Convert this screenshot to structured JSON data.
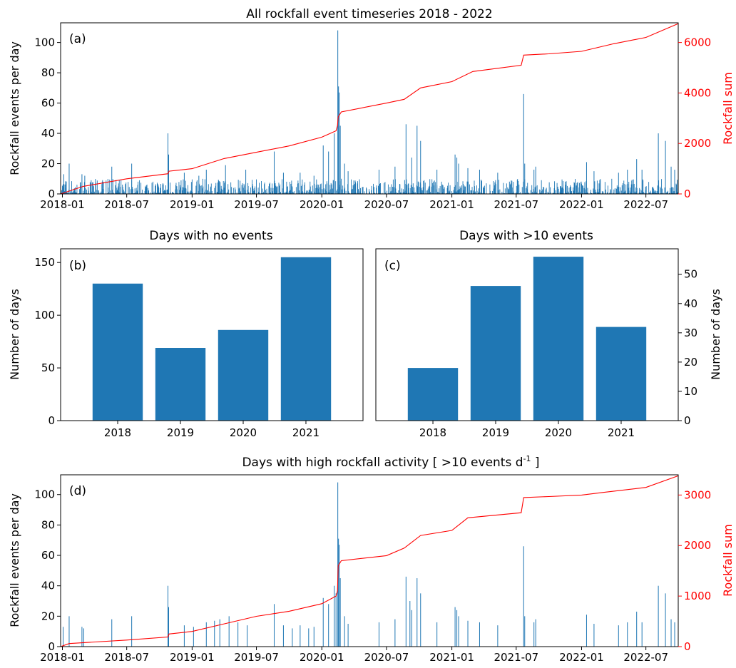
{
  "chart_data": [
    {
      "type": "bar",
      "title": "All rockfall event timeseries 2018 - 2022",
      "panel_label": "(a)",
      "ylabel": "Rockfall events per day",
      "ylabel_right": "Rockfall sum",
      "x_ticks": [
        "2018-01",
        "2018-07",
        "2019-01",
        "2019-07",
        "2020-01",
        "2020-07",
        "2021-01",
        "2021-07",
        "2022-01",
        "2022-07"
      ],
      "y_ticks": [
        "0",
        "20",
        "40",
        "60",
        "80",
        "100"
      ],
      "y_ticks_right": [
        "0",
        "2000",
        "4000",
        "6000"
      ],
      "ylim": [
        0,
        113
      ],
      "ylim_right": [
        0,
        6780
      ],
      "xlim": [
        "2017-12-27",
        "2022-09-30"
      ],
      "bar_color": "#1f77b4",
      "line_color": "#ff0000",
      "series": [
        {
          "kind": "bar",
          "name": "Rockfall events per day",
          "spikes": [
            {
              "x": "2018-01-05",
              "y": 13
            },
            {
              "x": "2018-01-20",
              "y": 20
            },
            {
              "x": "2018-02-25",
              "y": 13
            },
            {
              "x": "2018-03-05",
              "y": 12
            },
            {
              "x": "2018-05-20",
              "y": 18
            },
            {
              "x": "2018-07-15",
              "y": 20
            },
            {
              "x": "2018-10-25",
              "y": 40
            },
            {
              "x": "2018-10-27",
              "y": 26
            },
            {
              "x": "2018-12-10",
              "y": 14
            },
            {
              "x": "2019-01-20",
              "y": 12
            },
            {
              "x": "2019-02-10",
              "y": 16
            },
            {
              "x": "2019-04-05",
              "y": 19
            },
            {
              "x": "2019-06-01",
              "y": 16
            },
            {
              "x": "2019-08-20",
              "y": 28
            },
            {
              "x": "2019-09-15",
              "y": 14
            },
            {
              "x": "2019-11-01",
              "y": 14
            },
            {
              "x": "2019-12-10",
              "y": 12
            },
            {
              "x": "2020-01-05",
              "y": 32
            },
            {
              "x": "2020-01-20",
              "y": 28
            },
            {
              "x": "2020-02-05",
              "y": 40
            },
            {
              "x": "2020-02-15",
              "y": 108
            },
            {
              "x": "2020-02-17",
              "y": 71
            },
            {
              "x": "2020-02-19",
              "y": 67
            },
            {
              "x": "2020-02-22",
              "y": 45
            },
            {
              "x": "2020-03-05",
              "y": 20
            },
            {
              "x": "2020-03-15",
              "y": 15
            },
            {
              "x": "2020-06-10",
              "y": 16
            },
            {
              "x": "2020-07-25",
              "y": 18
            },
            {
              "x": "2020-08-25",
              "y": 46
            },
            {
              "x": "2020-09-10",
              "y": 24
            },
            {
              "x": "2020-09-25",
              "y": 45
            },
            {
              "x": "2020-10-05",
              "y": 35
            },
            {
              "x": "2020-11-20",
              "y": 16
            },
            {
              "x": "2021-01-10",
              "y": 26
            },
            {
              "x": "2021-01-15",
              "y": 24
            },
            {
              "x": "2021-01-20",
              "y": 20
            },
            {
              "x": "2021-02-15",
              "y": 17
            },
            {
              "x": "2021-03-20",
              "y": 16
            },
            {
              "x": "2021-05-10",
              "y": 14
            },
            {
              "x": "2021-07-22",
              "y": 66
            },
            {
              "x": "2021-07-25",
              "y": 20
            },
            {
              "x": "2021-08-20",
              "y": 16
            },
            {
              "x": "2021-08-25",
              "y": 18
            },
            {
              "x": "2022-01-15",
              "y": 21
            },
            {
              "x": "2022-02-05",
              "y": 15
            },
            {
              "x": "2022-04-15",
              "y": 14
            },
            {
              "x": "2022-05-10",
              "y": 16
            },
            {
              "x": "2022-06-05",
              "y": 23
            },
            {
              "x": "2022-06-20",
              "y": 16
            },
            {
              "x": "2022-08-05",
              "y": 40
            },
            {
              "x": "2022-08-25",
              "y": 35
            },
            {
              "x": "2022-09-10",
              "y": 18
            },
            {
              "x": "2022-09-20",
              "y": 16
            }
          ]
        },
        {
          "kind": "line",
          "name": "Rockfall sum",
          "axis": "right",
          "points": [
            {
              "x": "2017-12-27",
              "y": 0
            },
            {
              "x": "2018-03-01",
              "y": 300
            },
            {
              "x": "2018-07-01",
              "y": 600
            },
            {
              "x": "2018-10-25",
              "y": 800
            },
            {
              "x": "2018-10-28",
              "y": 900
            },
            {
              "x": "2019-01-01",
              "y": 1000
            },
            {
              "x": "2019-04-01",
              "y": 1400
            },
            {
              "x": "2019-07-01",
              "y": 1650
            },
            {
              "x": "2019-10-01",
              "y": 1900
            },
            {
              "x": "2020-01-01",
              "y": 2250
            },
            {
              "x": "2020-02-10",
              "y": 2500
            },
            {
              "x": "2020-02-14",
              "y": 2700
            },
            {
              "x": "2020-02-16",
              "y": 3050
            },
            {
              "x": "2020-02-25",
              "y": 3250
            },
            {
              "x": "2020-07-01",
              "y": 3600
            },
            {
              "x": "2020-08-20",
              "y": 3750
            },
            {
              "x": "2020-10-05",
              "y": 4200
            },
            {
              "x": "2021-01-01",
              "y": 4450
            },
            {
              "x": "2021-03-01",
              "y": 4850
            },
            {
              "x": "2021-07-15",
              "y": 5100
            },
            {
              "x": "2021-07-22",
              "y": 5500
            },
            {
              "x": "2021-10-01",
              "y": 5550
            },
            {
              "x": "2022-01-01",
              "y": 5650
            },
            {
              "x": "2022-04-01",
              "y": 5950
            },
            {
              "x": "2022-07-01",
              "y": 6200
            },
            {
              "x": "2022-09-30",
              "y": 6750
            }
          ]
        }
      ]
    },
    {
      "type": "bar",
      "title": "Days with no events",
      "panel_label": "(b)",
      "ylabel": "Number of days",
      "categories": [
        "2018",
        "2019",
        "2020",
        "2021"
      ],
      "values": [
        130,
        69,
        86,
        155
      ],
      "ylim": [
        0,
        163
      ],
      "y_ticks": [
        "0",
        "50",
        "100",
        "150"
      ],
      "bar_color": "#1f77b4"
    },
    {
      "type": "bar",
      "title": "Days with >10 events",
      "panel_label": "(c)",
      "ylabel": "Number of days",
      "ylabel_side": "right",
      "categories": [
        "2018",
        "2019",
        "2020",
        "2021"
      ],
      "values": [
        18,
        46,
        56,
        32
      ],
      "ylim": [
        0,
        58.7
      ],
      "y_ticks": [
        "0",
        "10",
        "20",
        "30",
        "40",
        "50"
      ],
      "bar_color": "#1f77b4"
    },
    {
      "type": "bar",
      "title": "Days with high rockfall activity [ >10 events d",
      "title_superscript": "-1",
      "title_suffix": " ]",
      "panel_label": "(d)",
      "ylabel": "Rockfall events per day",
      "ylabel_right": "Rockfall sum",
      "x_ticks": [
        "2018-01",
        "2018-07",
        "2019-01",
        "2019-07",
        "2020-01",
        "2020-07",
        "2021-01",
        "2021-07",
        "2022-01",
        "2022-07"
      ],
      "y_ticks": [
        "0",
        "20",
        "40",
        "60",
        "80",
        "100"
      ],
      "y_ticks_right": [
        "0",
        "1000",
        "2000",
        "3000"
      ],
      "ylim": [
        0,
        113
      ],
      "ylim_right": [
        0,
        3400
      ],
      "xlim": [
        "2017-12-27",
        "2022-09-30"
      ],
      "bar_color": "#1f77b4",
      "line_color": "#ff0000",
      "series": [
        {
          "kind": "bar",
          "name": "Rockfall events per day",
          "spikes": [
            {
              "x": "2018-01-03",
              "y": 13
            },
            {
              "x": "2018-01-20",
              "y": 20
            },
            {
              "x": "2018-02-25",
              "y": 13
            },
            {
              "x": "2018-03-02",
              "y": 12
            },
            {
              "x": "2018-05-20",
              "y": 18
            },
            {
              "x": "2018-07-15",
              "y": 20
            },
            {
              "x": "2018-10-25",
              "y": 40
            },
            {
              "x": "2018-10-27",
              "y": 26
            },
            {
              "x": "2018-12-10",
              "y": 14
            },
            {
              "x": "2019-01-05",
              "y": 13
            },
            {
              "x": "2019-02-10",
              "y": 16
            },
            {
              "x": "2019-03-05",
              "y": 17
            },
            {
              "x": "2019-03-20",
              "y": 18
            },
            {
              "x": "2019-04-15",
              "y": 20
            },
            {
              "x": "2019-05-10",
              "y": 16
            },
            {
              "x": "2019-06-05",
              "y": 14
            },
            {
              "x": "2019-08-20",
              "y": 28
            },
            {
              "x": "2019-09-15",
              "y": 14
            },
            {
              "x": "2019-10-10",
              "y": 12
            },
            {
              "x": "2019-11-01",
              "y": 14
            },
            {
              "x": "2019-11-25",
              "y": 12
            },
            {
              "x": "2019-12-10",
              "y": 13
            },
            {
              "x": "2020-01-05",
              "y": 32
            },
            {
              "x": "2020-01-20",
              "y": 28
            },
            {
              "x": "2020-02-05",
              "y": 40
            },
            {
              "x": "2020-02-10",
              "y": 35
            },
            {
              "x": "2020-02-15",
              "y": 108
            },
            {
              "x": "2020-02-17",
              "y": 71
            },
            {
              "x": "2020-02-19",
              "y": 67
            },
            {
              "x": "2020-02-22",
              "y": 45
            },
            {
              "x": "2020-03-05",
              "y": 20
            },
            {
              "x": "2020-03-15",
              "y": 15
            },
            {
              "x": "2020-06-10",
              "y": 16
            },
            {
              "x": "2020-07-25",
              "y": 18
            },
            {
              "x": "2020-08-25",
              "y": 46
            },
            {
              "x": "2020-09-05",
              "y": 30
            },
            {
              "x": "2020-09-10",
              "y": 24
            },
            {
              "x": "2020-09-25",
              "y": 45
            },
            {
              "x": "2020-10-05",
              "y": 35
            },
            {
              "x": "2020-11-20",
              "y": 16
            },
            {
              "x": "2021-01-10",
              "y": 26
            },
            {
              "x": "2021-01-15",
              "y": 24
            },
            {
              "x": "2021-01-20",
              "y": 20
            },
            {
              "x": "2021-02-15",
              "y": 17
            },
            {
              "x": "2021-03-20",
              "y": 16
            },
            {
              "x": "2021-05-10",
              "y": 14
            },
            {
              "x": "2021-07-22",
              "y": 66
            },
            {
              "x": "2021-07-25",
              "y": 20
            },
            {
              "x": "2021-08-20",
              "y": 16
            },
            {
              "x": "2021-08-25",
              "y": 18
            },
            {
              "x": "2022-01-15",
              "y": 21
            },
            {
              "x": "2022-02-05",
              "y": 15
            },
            {
              "x": "2022-04-15",
              "y": 14
            },
            {
              "x": "2022-05-10",
              "y": 16
            },
            {
              "x": "2022-06-05",
              "y": 23
            },
            {
              "x": "2022-06-20",
              "y": 16
            },
            {
              "x": "2022-08-05",
              "y": 40
            },
            {
              "x": "2022-08-25",
              "y": 35
            },
            {
              "x": "2022-09-10",
              "y": 18
            },
            {
              "x": "2022-09-20",
              "y": 16
            }
          ]
        },
        {
          "kind": "line",
          "name": "Rockfall sum",
          "axis": "right",
          "points": [
            {
              "x": "2017-12-27",
              "y": 0
            },
            {
              "x": "2018-01-20",
              "y": 60
            },
            {
              "x": "2018-07-01",
              "y": 130
            },
            {
              "x": "2018-10-25",
              "y": 190
            },
            {
              "x": "2018-10-28",
              "y": 250
            },
            {
              "x": "2019-01-01",
              "y": 300
            },
            {
              "x": "2019-04-01",
              "y": 450
            },
            {
              "x": "2019-07-01",
              "y": 600
            },
            {
              "x": "2019-10-01",
              "y": 700
            },
            {
              "x": "2020-01-01",
              "y": 850
            },
            {
              "x": "2020-02-10",
              "y": 1000
            },
            {
              "x": "2020-02-14",
              "y": 1100
            },
            {
              "x": "2020-02-16",
              "y": 1600
            },
            {
              "x": "2020-02-25",
              "y": 1700
            },
            {
              "x": "2020-07-01",
              "y": 1800
            },
            {
              "x": "2020-08-20",
              "y": 1950
            },
            {
              "x": "2020-10-05",
              "y": 2200
            },
            {
              "x": "2021-01-01",
              "y": 2300
            },
            {
              "x": "2021-02-15",
              "y": 2550
            },
            {
              "x": "2021-07-15",
              "y": 2650
            },
            {
              "x": "2021-07-22",
              "y": 2950
            },
            {
              "x": "2021-10-01",
              "y": 2970
            },
            {
              "x": "2022-01-01",
              "y": 3000
            },
            {
              "x": "2022-03-01",
              "y": 3050
            },
            {
              "x": "2022-07-01",
              "y": 3150
            },
            {
              "x": "2022-09-30",
              "y": 3380
            }
          ]
        }
      ]
    }
  ]
}
